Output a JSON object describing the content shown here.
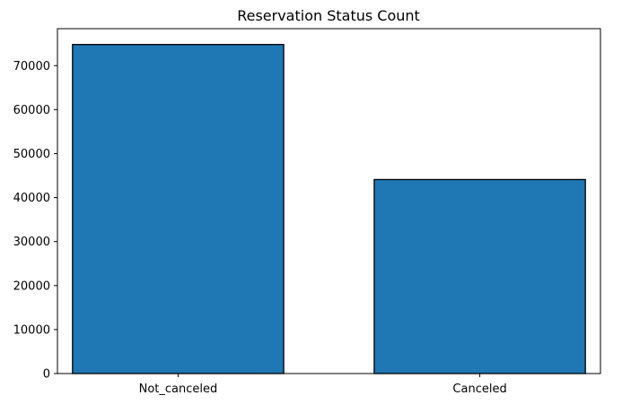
{
  "chart_data": {
    "type": "bar",
    "title": "Reservation Status Count",
    "categories": [
      "Not_canceled",
      "Canceled"
    ],
    "values": [
      74800,
      44100
    ],
    "ylim": [
      0,
      78400
    ],
    "yticks": [
      0,
      10000,
      20000,
      30000,
      40000,
      50000,
      60000,
      70000
    ],
    "xlabel": "",
    "ylabel": "",
    "grid": false,
    "legend": "none",
    "colors": {
      "bar": "#1f77b4",
      "edge": "#000000"
    }
  }
}
